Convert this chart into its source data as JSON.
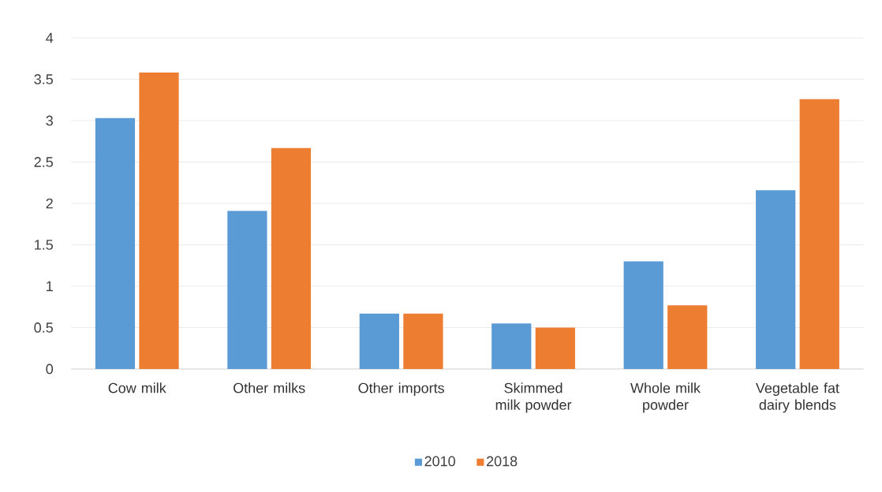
{
  "chart_data": {
    "type": "bar",
    "categories": [
      "Cow milk",
      "Other milks",
      "Other imports",
      "Skimmed milk powder",
      "Whole milk powder",
      "Vegetable fat dairy blends"
    ],
    "series": [
      {
        "name": "2010",
        "color": "#5b9bd5",
        "values": [
          3.03,
          1.91,
          0.67,
          0.55,
          1.3,
          2.16
        ]
      },
      {
        "name": "2018",
        "color": "#ed7d31",
        "values": [
          3.58,
          2.67,
          0.67,
          0.5,
          0.77,
          3.26
        ]
      }
    ],
    "ylim": [
      0,
      4
    ],
    "yticks": [
      0,
      0.5,
      1,
      1.5,
      2,
      2.5,
      3,
      3.5,
      4
    ],
    "grid": "y",
    "legend": "bottom"
  }
}
